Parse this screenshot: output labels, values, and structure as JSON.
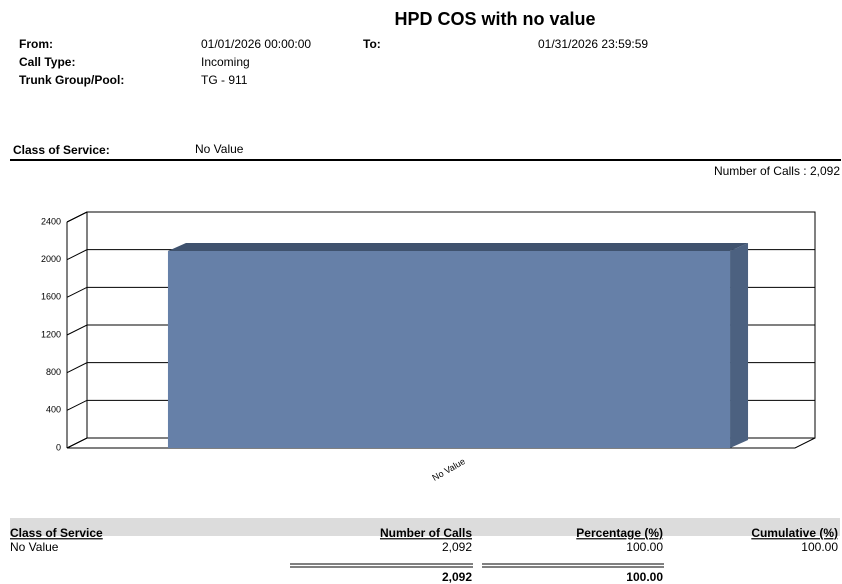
{
  "header": {
    "title": "HPD COS with no value",
    "fields": [
      {
        "label": "From:",
        "value": "01/01/2026 00:00:00"
      },
      {
        "label": "To:",
        "value": "01/31/2026 23:59:59"
      },
      {
        "label": "Call Type:",
        "value": "Incoming"
      },
      {
        "label": "Trunk Group/Pool:",
        "value": "TG - 911"
      }
    ],
    "group": {
      "label": "Class of Service:",
      "value": "No Value"
    },
    "summary": "Number of Calls : 2,092"
  },
  "chart_data": {
    "type": "bar",
    "categories": [
      "No Value"
    ],
    "values": [
      2092
    ],
    "color": "#6680a8",
    "ylim": [
      0,
      2400
    ],
    "yticks": [
      0,
      400,
      800,
      1200,
      1600,
      2000,
      2400
    ],
    "grid": true
  },
  "table": {
    "columns": [
      "Class of Service",
      "Number of Calls",
      "Percentage (%)",
      "Cumulative (%)"
    ],
    "rows": [
      [
        "No Value",
        "2,092",
        "100.00",
        "100.00"
      ]
    ],
    "totals": [
      "2,092",
      "100.00"
    ]
  }
}
